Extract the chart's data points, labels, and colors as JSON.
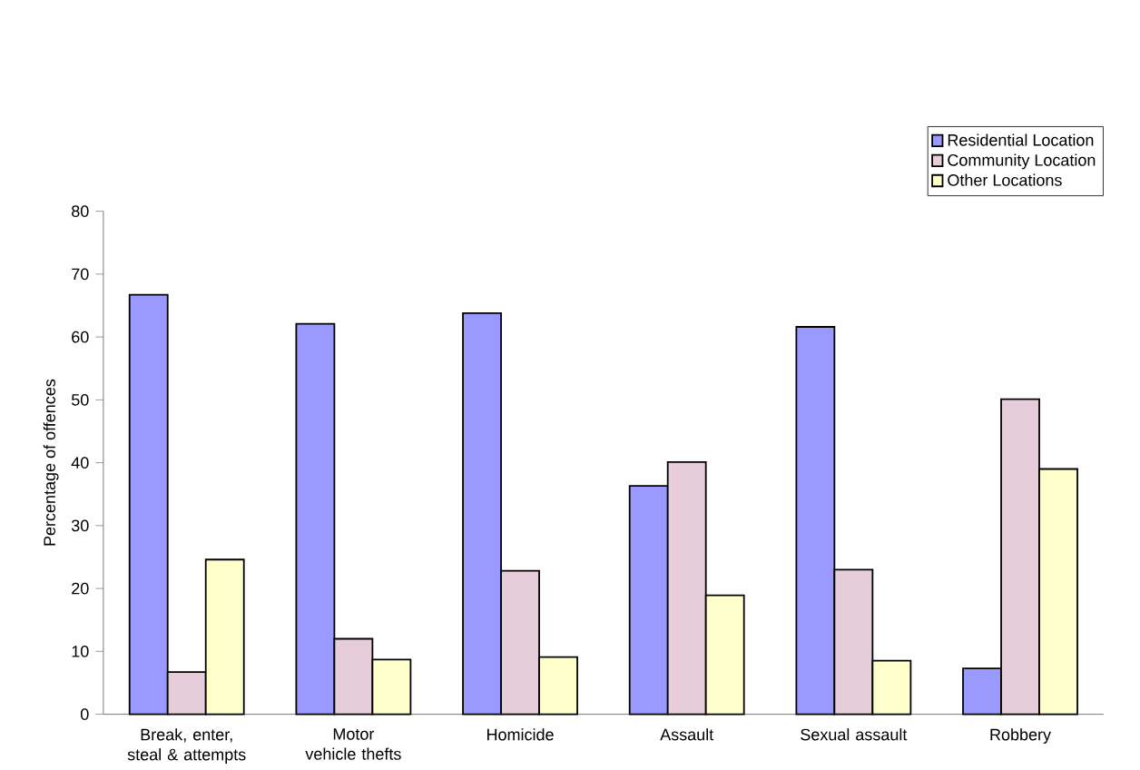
{
  "chart_data": {
    "type": "bar",
    "ylabel": "Percentage of offences",
    "categories": [
      "Break, enter, steal & attempts",
      "Motor vehicle thefts",
      "Homicide",
      "Assault",
      "Sexual assault",
      "Robbery"
    ],
    "series": [
      {
        "name": "Residential Location",
        "color": "#9999ff",
        "values": [
          66.7,
          62.1,
          63.8,
          36.3,
          61.6,
          7.3
        ]
      },
      {
        "name": "Community Location",
        "color": "#e6cdd9",
        "values": [
          6.7,
          12.0,
          22.8,
          40.1,
          23.0,
          50.1
        ]
      },
      {
        "name": "Other Locations",
        "color": "#ffffcc",
        "values": [
          24.6,
          8.7,
          9.1,
          18.9,
          8.5,
          39.0
        ]
      }
    ],
    "ylim": [
      0,
      80
    ],
    "yticks": [
      0,
      10,
      20,
      30,
      40,
      50,
      60,
      70,
      80
    ],
    "legend": "top right"
  }
}
